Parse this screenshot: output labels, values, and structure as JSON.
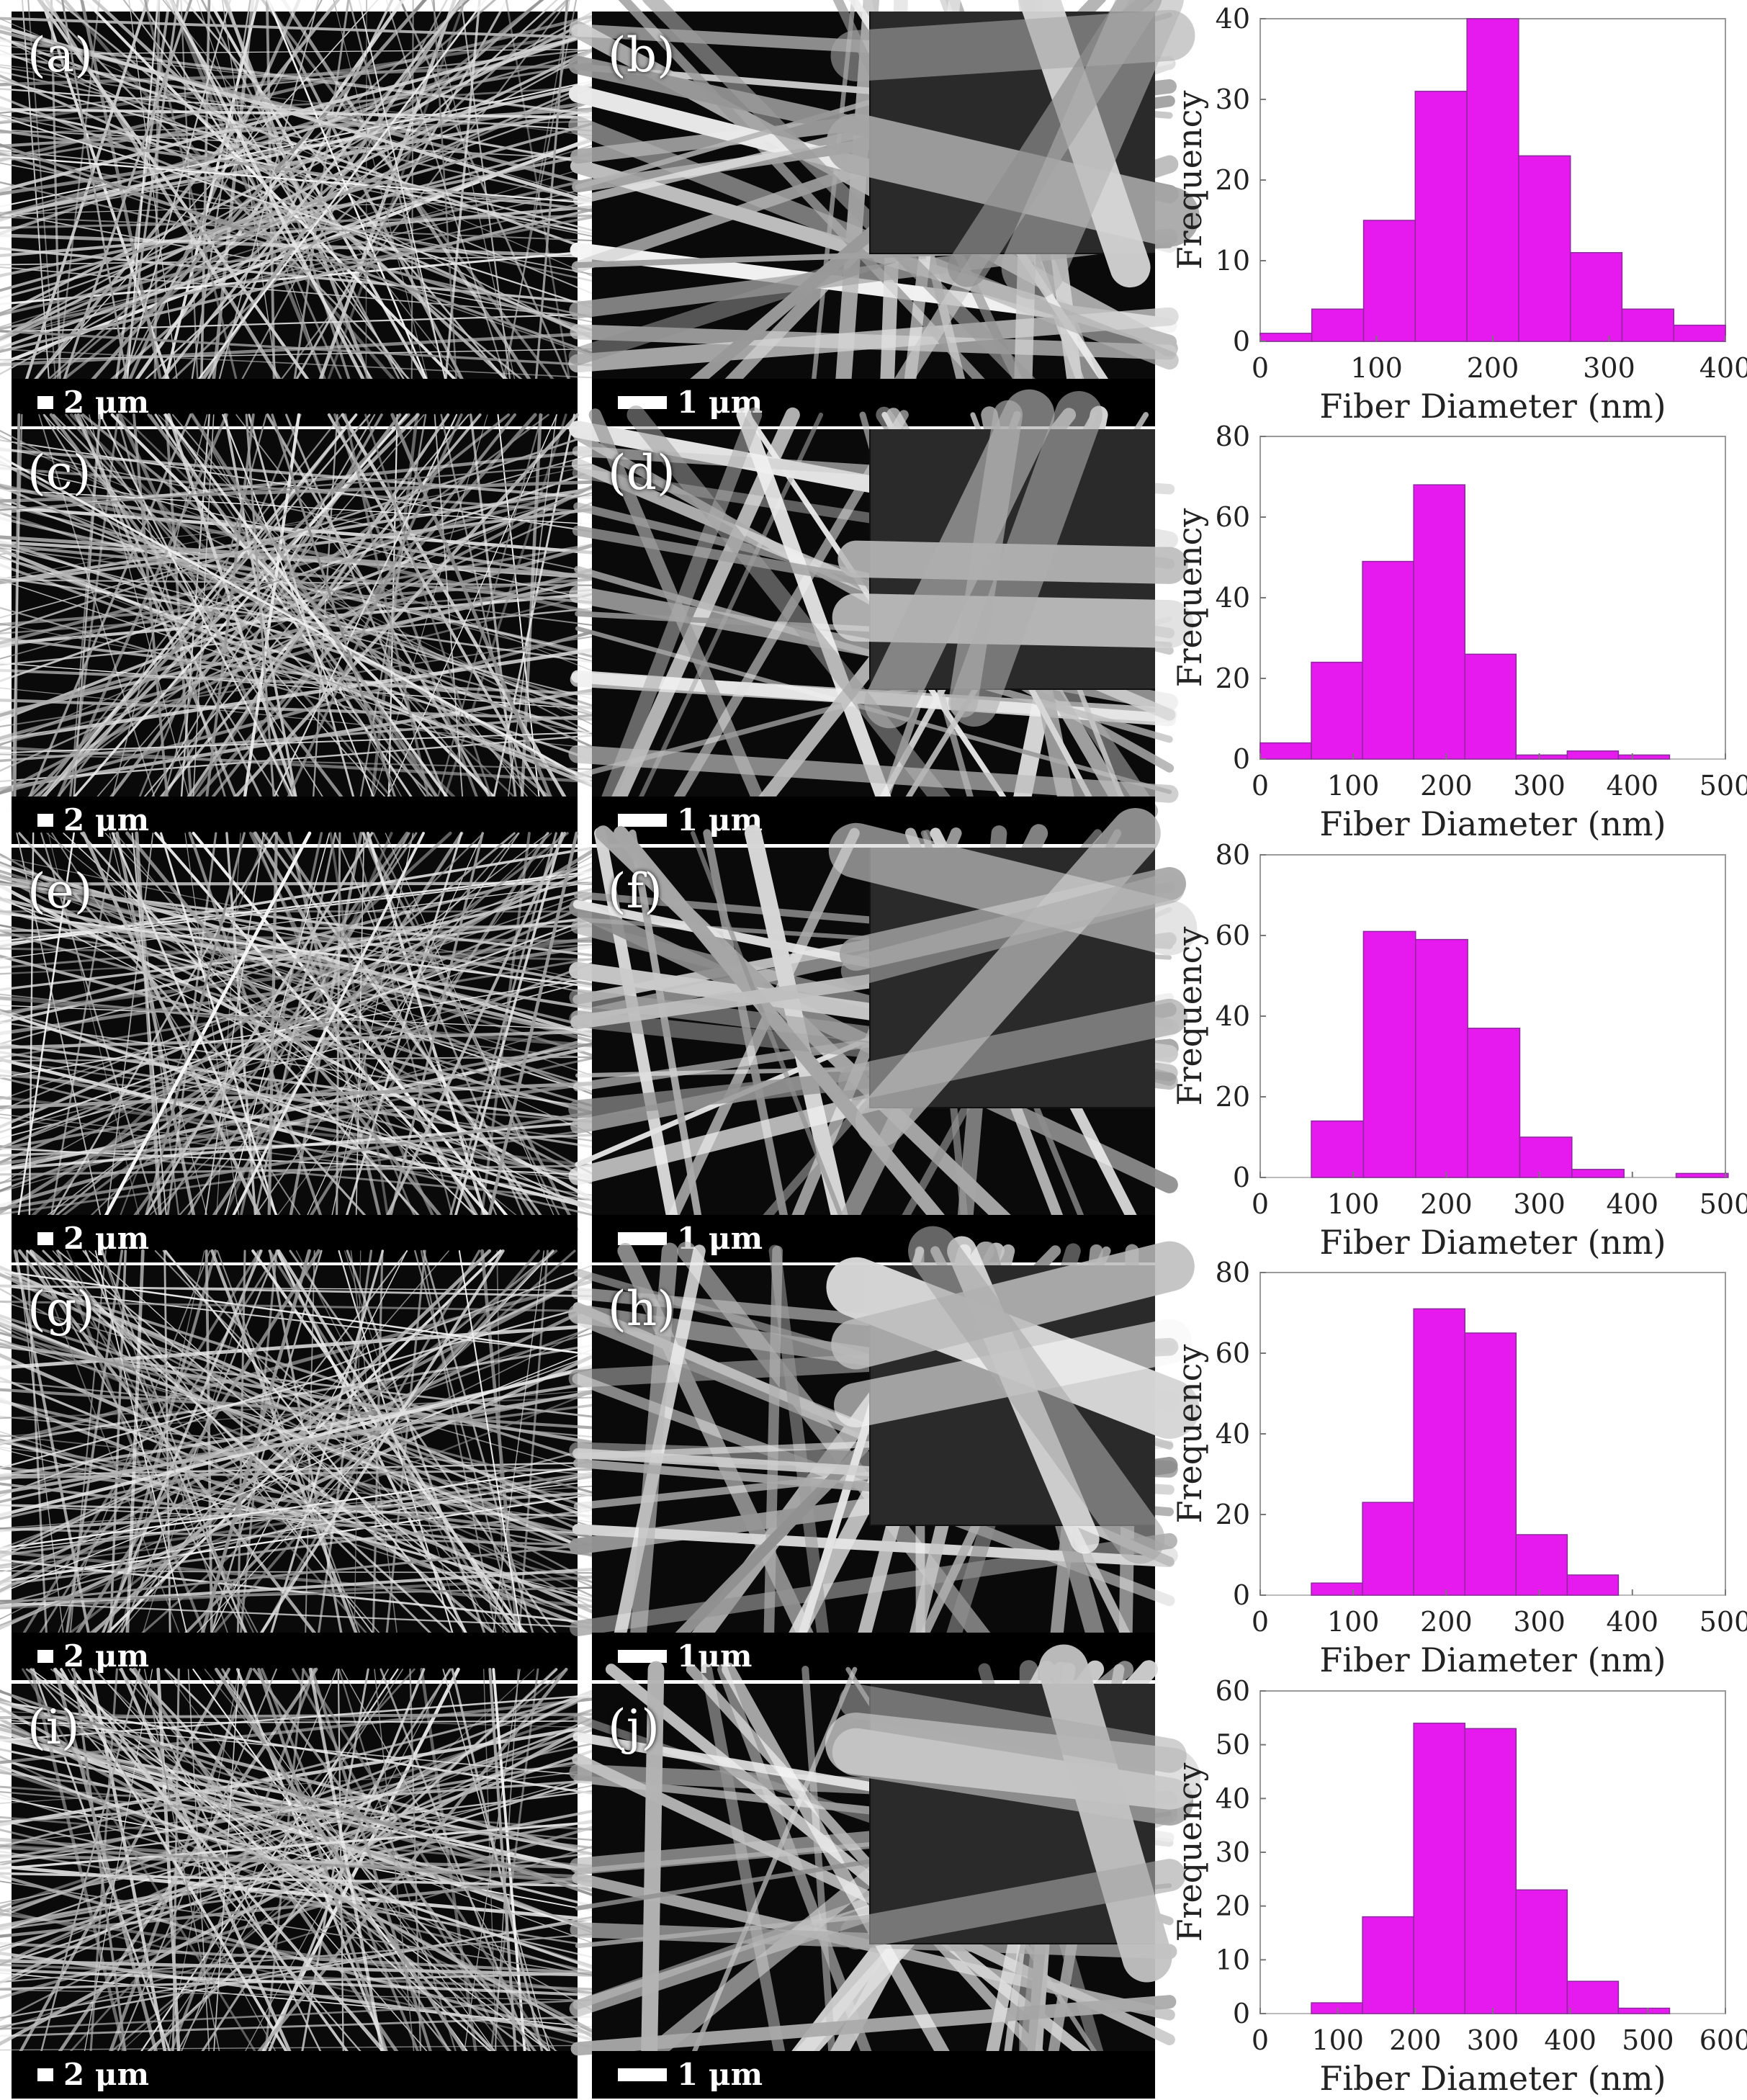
{
  "panels": [
    {
      "overview": {
        "label": "(a)",
        "scale": "2 μm"
      },
      "detail": {
        "label": "(b)",
        "scale": "1 μm"
      }
    },
    {
      "overview": {
        "label": "(c)",
        "scale": "2 μm"
      },
      "detail": {
        "label": "(d)",
        "scale": "1 μm"
      }
    },
    {
      "overview": {
        "label": "(e)",
        "scale": "2 μm"
      },
      "detail": {
        "label": "(f)",
        "scale": "1 μm"
      }
    },
    {
      "overview": {
        "label": "(g)",
        "scale": "2 μm"
      },
      "detail": {
        "label": "(h)",
        "scale": "1μm"
      }
    },
    {
      "overview": {
        "label": "(i)",
        "scale": "2 μm"
      },
      "detail": {
        "label": "(j)",
        "scale": "1 μm"
      }
    }
  ],
  "colors": {
    "bar_fill": "#e619ef",
    "bar_edge": "#8a2a9a",
    "sem_bg": "#0a0a0a",
    "fiber": "#d8d8d8"
  },
  "chart_data": [
    {
      "type": "bar",
      "xlabel": "Fiber Diameter (nm)",
      "ylabel": "Frequency",
      "xlim": [
        0,
        400
      ],
      "ylim": [
        0,
        40
      ],
      "xticks": [
        0,
        100,
        200,
        300,
        400
      ],
      "yticks": [
        0,
        10,
        20,
        30,
        40
      ],
      "bin_edges": [
        0,
        44.4,
        88.9,
        133.3,
        177.8,
        222.2,
        266.7,
        311.1,
        355.6,
        400
      ],
      "values": [
        1,
        4,
        15,
        31,
        40,
        23,
        11,
        4,
        2
      ]
    },
    {
      "type": "bar",
      "xlabel": "Fiber Diameter (nm)",
      "ylabel": "Frequency",
      "xlim": [
        0,
        500
      ],
      "ylim": [
        0,
        80
      ],
      "xticks": [
        0,
        100,
        200,
        300,
        400,
        500
      ],
      "yticks": [
        0,
        20,
        40,
        60,
        80
      ],
      "bin_edges": [
        0,
        55,
        110,
        165,
        220,
        275,
        330,
        385,
        440
      ],
      "values": [
        4,
        24,
        49,
        68,
        26,
        1,
        2,
        1
      ]
    },
    {
      "type": "bar",
      "xlabel": "Fiber Diameter (nm)",
      "ylabel": "Frequency",
      "xlim": [
        0,
        500
      ],
      "ylim": [
        0,
        80
      ],
      "xticks": [
        0,
        100,
        200,
        300,
        400,
        500
      ],
      "yticks": [
        0,
        20,
        40,
        60,
        80
      ],
      "bin_edges": [
        55,
        111,
        167,
        223,
        279,
        335,
        391,
        447,
        503
      ],
      "values": [
        14,
        61,
        59,
        37,
        10,
        2,
        0,
        1
      ]
    },
    {
      "type": "bar",
      "xlabel": "Fiber Diameter (nm)",
      "ylabel": "Frequency",
      "xlim": [
        0,
        500
      ],
      "ylim": [
        0,
        80
      ],
      "xticks": [
        0,
        100,
        200,
        300,
        400,
        500
      ],
      "yticks": [
        0,
        20,
        40,
        60,
        80
      ],
      "bin_edges": [
        55,
        110,
        165,
        220,
        275,
        330,
        385
      ],
      "values": [
        3,
        23,
        71,
        65,
        15,
        5
      ]
    },
    {
      "type": "bar",
      "xlabel": "Fiber Diameter (nm)",
      "ylabel": "Frequency",
      "xlim": [
        0,
        600
      ],
      "ylim": [
        0,
        60
      ],
      "xticks": [
        0,
        100,
        200,
        300,
        400,
        500,
        600
      ],
      "yticks": [
        0,
        10,
        20,
        30,
        40,
        50,
        60
      ],
      "bin_edges": [
        66,
        132,
        198,
        264,
        330,
        396,
        462,
        528
      ],
      "values": [
        2,
        18,
        54,
        53,
        23,
        6,
        1
      ]
    }
  ]
}
